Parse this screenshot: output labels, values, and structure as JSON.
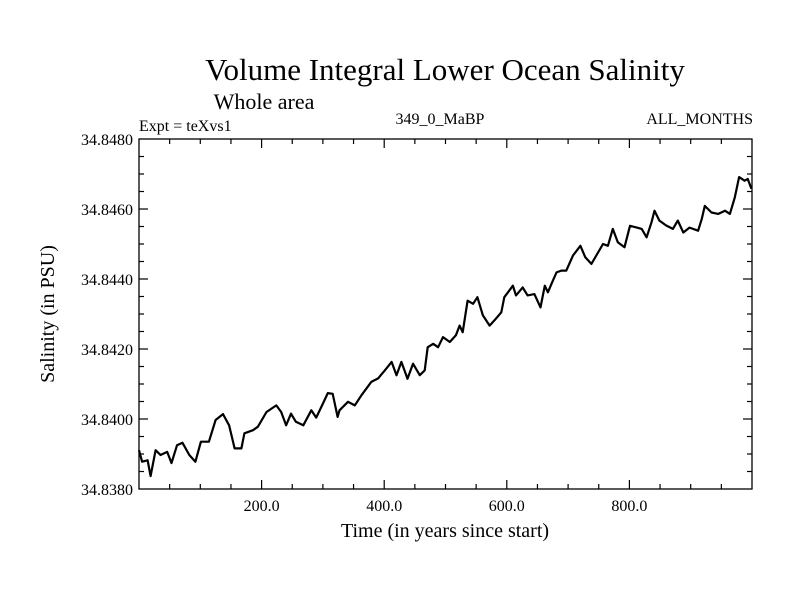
{
  "chart_data": {
    "type": "line",
    "title": "Volume Integral Lower Ocean Salinity",
    "subtitle": "Whole area",
    "header_left": "Expt = teXvs1",
    "header_center": "349_0_MaBP",
    "header_right": "ALL_MONTHS",
    "xlabel": "Time (in years since start)",
    "ylabel": "Salinity (in PSU)",
    "xlim": [
      0,
      1000
    ],
    "ylim": [
      34.838,
      34.848
    ],
    "x_major_ticks": [
      200,
      400,
      600,
      800
    ],
    "x_tick_labels": [
      "200.0",
      "400.0",
      "600.0",
      "800.0"
    ],
    "x_minor_step": 50,
    "y_major_ticks": [
      34.838,
      34.84,
      34.842,
      34.844,
      34.846,
      34.848
    ],
    "y_tick_labels": [
      "34.8380",
      "34.8400",
      "34.8420",
      "34.8440",
      "34.8460",
      "34.8480"
    ],
    "y_minor_step": 0.0005,
    "grid": false,
    "series": [
      {
        "name": "Salinity",
        "color": "#000000",
        "x": [
          0,
          5,
          14,
          19,
          27,
          35,
          46,
          53,
          62,
          71,
          82,
          92,
          101,
          114,
          125,
          137,
          147,
          156,
          167,
          172,
          186,
          194,
          208,
          224,
          232,
          240,
          248,
          256,
          268,
          281,
          289,
          300,
          308,
          316,
          324,
          327,
          341,
          352,
          363,
          379,
          390,
          401,
          412,
          420,
          428,
          438,
          447,
          458,
          466,
          471,
          480,
          488,
          496,
          507,
          517,
          523,
          528,
          536,
          545,
          552,
          561,
          572,
          580,
          591,
          596,
          610,
          615,
          626,
          634,
          645,
          655,
          662,
          667,
          675,
          681,
          689,
          697,
          708,
          720,
          728,
          738,
          746,
          757,
          765,
          773,
          781,
          792,
          801,
          812,
          820,
          828,
          836,
          841,
          849,
          860,
          871,
          879,
          888,
          898,
          912,
          918,
          923,
          934,
          945,
          956,
          964,
          972,
          979,
          988,
          993,
          999
        ],
        "y": [
          34.83911,
          34.83878,
          34.83882,
          34.83837,
          34.83911,
          34.83897,
          34.83906,
          34.83874,
          34.83925,
          34.83932,
          34.83897,
          34.83878,
          34.83935,
          34.83935,
          34.83997,
          34.84014,
          34.83982,
          34.83916,
          34.83916,
          34.83959,
          34.83968,
          34.83978,
          34.8402,
          34.84039,
          34.8402,
          34.83982,
          34.84015,
          34.83992,
          34.83982,
          34.84025,
          34.84004,
          34.84044,
          34.84074,
          34.84072,
          34.84006,
          34.84025,
          34.84049,
          34.84039,
          34.84068,
          34.84106,
          34.84116,
          34.84139,
          34.84163,
          34.84125,
          34.84163,
          34.84115,
          34.84158,
          34.84125,
          34.84139,
          34.84205,
          34.84215,
          34.84205,
          34.84234,
          34.8422,
          34.84239,
          34.84267,
          34.84248,
          34.84338,
          34.84329,
          34.84348,
          34.84296,
          34.84267,
          34.84282,
          34.84305,
          34.84348,
          34.84381,
          34.84353,
          34.84376,
          34.84353,
          34.84357,
          34.84319,
          34.84381,
          34.84362,
          34.84395,
          34.84419,
          34.84424,
          34.84424,
          34.84467,
          34.84495,
          34.84462,
          34.84443,
          34.84467,
          34.845,
          34.84495,
          34.84543,
          34.84505,
          34.84491,
          34.84552,
          34.84547,
          34.84543,
          34.84519,
          34.84562,
          34.84595,
          34.84567,
          34.84553,
          34.84543,
          34.84567,
          34.84533,
          34.84547,
          34.84538,
          34.84571,
          34.84609,
          34.8459,
          34.84586,
          34.84595,
          34.84586,
          34.84633,
          34.84691,
          34.84681,
          34.84686,
          34.84658
        ]
      }
    ]
  }
}
